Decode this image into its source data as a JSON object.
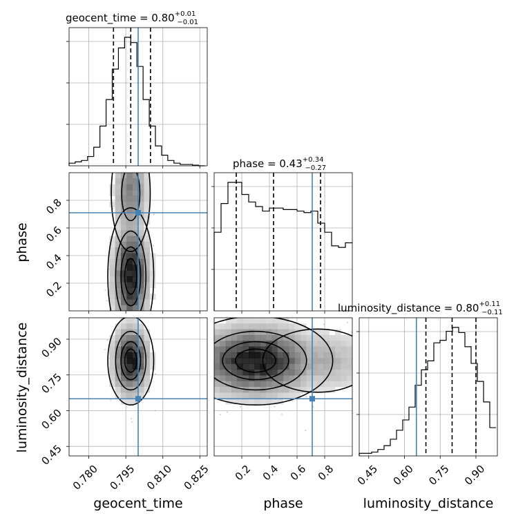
{
  "figure": {
    "title": "",
    "truth_color": "#4682b4"
  },
  "chart_data": {
    "type": "corner",
    "parameters": [
      {
        "name": "geocent_time",
        "range": [
          0.772,
          0.828
        ],
        "ticks": [
          0.78,
          0.795,
          0.81,
          0.825
        ],
        "tick_labels": [
          "0.780",
          "0.795",
          "0.810",
          "0.825"
        ],
        "truth": 0.8,
        "quantiles": [
          0.79,
          0.797,
          0.805
        ],
        "title": {
          "prefix": "geocent_time = ",
          "median": "0.80",
          "plus": "+0.01",
          "minus": "−0.01"
        },
        "hist": {
          "edges_start": 0.772,
          "bin_width": 0.0025,
          "counts": [
            0.02,
            0.03,
            0.04,
            0.07,
            0.14,
            0.3,
            0.5,
            0.73,
            0.89,
            0.97,
            0.93,
            0.75,
            0.5,
            0.3,
            0.15,
            0.08,
            0.04,
            0.02,
            0.01,
            0.01,
            0.005,
            0.0
          ]
        }
      },
      {
        "name": "phase",
        "range": [
          0.0,
          1.0
        ],
        "ticks": [
          0.2,
          0.4,
          0.6,
          0.8
        ],
        "tick_labels": [
          "0.2",
          "0.4",
          "0.6",
          "0.8"
        ],
        "truth": 0.71,
        "quantiles": [
          0.16,
          0.43,
          0.77
        ],
        "title": {
          "prefix": "phase = ",
          "median": "0.43",
          "plus": "+0.34",
          "minus": "−0.27"
        },
        "hist": {
          "edges_start": 0.0,
          "bin_width": 0.05,
          "counts": [
            0.52,
            0.71,
            0.85,
            0.85,
            0.77,
            0.72,
            0.69,
            0.66,
            0.68,
            0.68,
            0.67,
            0.67,
            0.66,
            0.65,
            0.66,
            0.58,
            0.52,
            0.43,
            0.42,
            0.45
          ]
        }
      },
      {
        "name": "luminosity_distance",
        "range": [
          0.41,
          0.99
        ],
        "ticks": [
          0.45,
          0.6,
          0.75,
          0.9
        ],
        "tick_labels": [
          "0.45",
          "0.60",
          "0.75",
          "0.90"
        ],
        "truth": 0.65,
        "quantiles": [
          0.69,
          0.8,
          0.9
        ],
        "title": {
          "prefix": "luminosity_distance = ",
          "median": "0.80",
          "plus": "+0.11",
          "minus": "−0.11"
        },
        "hist": {
          "edges_start": 0.41,
          "bin_width": 0.0261,
          "counts": [
            0.02,
            0.02,
            0.03,
            0.05,
            0.08,
            0.13,
            0.2,
            0.28,
            0.38,
            0.55,
            0.67,
            0.74,
            0.88,
            0.9,
            0.97,
            1.0,
            0.96,
            0.85,
            0.72,
            0.58,
            0.42,
            0.22
          ]
        }
      }
    ],
    "pairs": [
      {
        "x": "geocent_time",
        "y": "phase",
        "truth_point": [
          0.8,
          0.71
        ],
        "density": {
          "shape": "gaussian",
          "center": [
            0.797,
            0.25
          ],
          "sigma": [
            0.0045,
            0.24
          ],
          "secondary_center": [
            0.797,
            0.85
          ],
          "secondary_weight": 0.55
        },
        "contour_levels": [
          0.118,
          0.393,
          0.675,
          0.865
        ]
      },
      {
        "x": "geocent_time",
        "y": "luminosity_distance",
        "truth_point": [
          0.8,
          0.65
        ],
        "density": {
          "shape": "gaussian",
          "center": [
            0.797,
            0.81
          ],
          "sigma": [
            0.0045,
            0.09
          ]
        },
        "contour_levels": [
          0.118,
          0.393,
          0.675,
          0.865
        ]
      },
      {
        "x": "phase",
        "y": "luminosity_distance",
        "truth_point": [
          0.71,
          0.65
        ],
        "density": {
          "shape": "gaussian",
          "center": [
            0.3,
            0.81
          ],
          "sigma": [
            0.27,
            0.09
          ],
          "secondary_center": [
            0.75,
            0.81
          ],
          "secondary_weight": 0.35
        },
        "contour_levels": [
          0.118,
          0.393,
          0.675,
          0.865
        ]
      }
    ]
  }
}
